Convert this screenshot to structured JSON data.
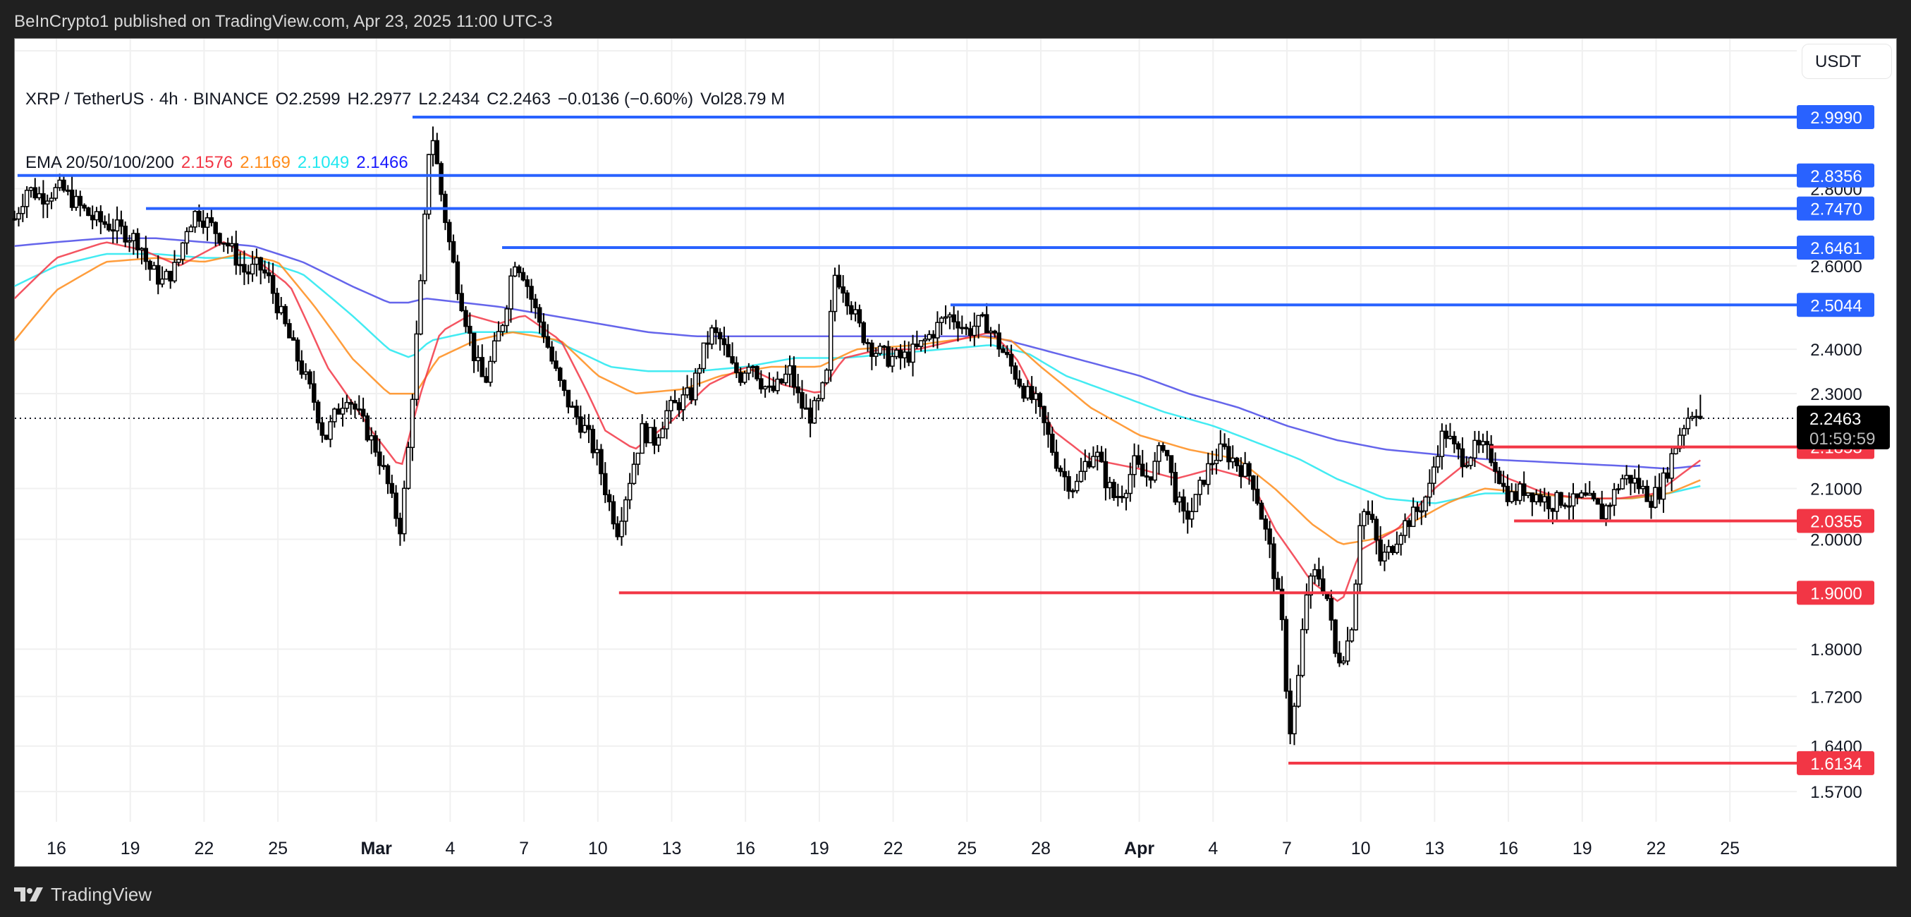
{
  "publisher_bar": {
    "text": "BeInCrypto1 published on TradingView.com, Apr 23, 2025 11:00 UTC-3"
  },
  "legend": {
    "symbol": "XRP / TetherUS · 4h · BINANCE",
    "open": "O2.2599",
    "high": "H2.2977",
    "low": "L2.2434",
    "close": "C2.2463",
    "change": "−0.0136 (−0.60%)",
    "volume": "Vol28.79 M",
    "ema_label": "EMA 20/50/100/200",
    "ema_values": [
      {
        "value": "2.1576",
        "color": "#f23645"
      },
      {
        "value": "2.1169",
        "color": "#ff8c1a"
      },
      {
        "value": "2.1049",
        "color": "#22e8f0"
      },
      {
        "value": "2.1466",
        "color": "#1a1aff"
      }
    ]
  },
  "currency_button": {
    "label": "USDT"
  },
  "footer": {
    "brand": "TradingView"
  },
  "colors": {
    "support": "#f23645",
    "resistance": "#2962ff",
    "ema20": "#f23645",
    "ema50": "#ff8c1a",
    "ema100": "#22e8f0",
    "ema200": "#4a4ae8",
    "current_price_bg": "#000000",
    "grid": "#f0f0f0"
  },
  "chart_data": {
    "type": "candlestick",
    "title": "XRP / TetherUS · 4h · BINANCE",
    "xlabel": "",
    "ylabel": "USDT",
    "y_scale": "log",
    "ylim": [
      1.55,
      3.08
    ],
    "x_tick_labels": [
      "16",
      "19",
      "22",
      "25",
      "Mar",
      "4",
      "7",
      "10",
      "13",
      "16",
      "19",
      "22",
      "25",
      "28",
      "Apr",
      "4",
      "7",
      "10",
      "13",
      "16",
      "19",
      "22",
      "25"
    ],
    "x_tick_days": [
      0,
      3,
      6,
      9,
      13,
      16,
      19,
      22,
      25,
      28,
      31,
      34,
      37,
      40,
      44,
      47,
      50,
      53,
      56,
      59,
      62,
      65,
      68
    ],
    "y_tick_labels": [
      "2.8000",
      "2.6000",
      "2.4000",
      "2.3000",
      "2.1000",
      "2.0000",
      "1.8000",
      "1.7200",
      "1.6400",
      "1.5700"
    ],
    "y_tick_values": [
      2.8,
      2.6,
      2.4,
      2.3,
      2.1,
      2.0,
      1.8,
      1.72,
      1.64,
      1.57
    ],
    "current_price": {
      "value": "2.2463",
      "countdown": "01:59:59"
    },
    "ohlc_last": {
      "open": 2.2599,
      "high": 2.2977,
      "low": 2.2434,
      "close": 2.2463
    },
    "resistance_levels": [
      {
        "label": "2.9990",
        "value": 2.999,
        "start_day": 14.47
      },
      {
        "label": "2.8356",
        "value": 2.8356,
        "start_day": -1.58
      },
      {
        "label": "2.7470",
        "value": 2.747,
        "start_day": 3.64
      },
      {
        "label": "2.6461",
        "value": 2.6461,
        "start_day": 18.11
      },
      {
        "label": "2.5044",
        "value": 2.5044,
        "start_day": 36.33
      }
    ],
    "support_levels": [
      {
        "label": "2.1853",
        "value": 2.1853,
        "start_day": 58.25
      },
      {
        "label": "2.0355",
        "value": 2.0355,
        "start_day": 59.23
      },
      {
        "label": "1.9000",
        "value": 1.9,
        "start_day": 22.86
      },
      {
        "label": "1.6134",
        "value": 1.6134,
        "start_day": 50.06
      }
    ],
    "close_path": [
      [
        -1.7,
        2.72
      ],
      [
        -1.2,
        2.8
      ],
      [
        -0.6,
        2.78
      ],
      [
        0.2,
        2.8
      ],
      [
        0.8,
        2.76
      ],
      [
        1.5,
        2.72
      ],
      [
        2.3,
        2.7
      ],
      [
        2.9,
        2.68
      ],
      [
        3.4,
        2.66
      ],
      [
        3.7,
        2.6
      ],
      [
        4.3,
        2.56
      ],
      [
        4.9,
        2.6
      ],
      [
        5.3,
        2.7
      ],
      [
        5.7,
        2.74
      ],
      [
        6.3,
        2.7
      ],
      [
        6.9,
        2.66
      ],
      [
        7.3,
        2.62
      ],
      [
        7.7,
        2.58
      ],
      [
        8.2,
        2.6
      ],
      [
        8.6,
        2.57
      ],
      [
        9.0,
        2.5
      ],
      [
        9.5,
        2.42
      ],
      [
        10.0,
        2.35
      ],
      [
        10.5,
        2.28
      ],
      [
        10.9,
        2.2
      ],
      [
        11.3,
        2.25
      ],
      [
        11.8,
        2.3
      ],
      [
        12.2,
        2.26
      ],
      [
        12.6,
        2.22
      ],
      [
        13.0,
        2.18
      ],
      [
        13.4,
        2.12
      ],
      [
        13.7,
        2.06
      ],
      [
        14.0,
        2.02
      ],
      [
        14.3,
        2.18
      ],
      [
        14.6,
        2.4
      ],
      [
        14.9,
        2.62
      ],
      [
        15.1,
        2.9
      ],
      [
        15.3,
        2.94
      ],
      [
        15.6,
        2.8
      ],
      [
        15.9,
        2.68
      ],
      [
        16.2,
        2.58
      ],
      [
        16.6,
        2.48
      ],
      [
        17.0,
        2.38
      ],
      [
        17.4,
        2.32
      ],
      [
        17.8,
        2.4
      ],
      [
        18.2,
        2.48
      ],
      [
        18.6,
        2.62
      ],
      [
        19.0,
        2.58
      ],
      [
        19.4,
        2.5
      ],
      [
        19.8,
        2.44
      ],
      [
        20.2,
        2.36
      ],
      [
        20.6,
        2.3
      ],
      [
        21.0,
        2.26
      ],
      [
        21.5,
        2.22
      ],
      [
        22.0,
        2.16
      ],
      [
        22.4,
        2.08
      ],
      [
        22.8,
        2.02
      ],
      [
        23.3,
        2.12
      ],
      [
        23.8,
        2.22
      ],
      [
        24.3,
        2.2
      ],
      [
        24.8,
        2.26
      ],
      [
        25.3,
        2.28
      ],
      [
        25.8,
        2.3
      ],
      [
        26.2,
        2.38
      ],
      [
        26.6,
        2.44
      ],
      [
        27.0,
        2.42
      ],
      [
        27.4,
        2.36
      ],
      [
        27.8,
        2.34
      ],
      [
        28.2,
        2.38
      ],
      [
        28.6,
        2.33
      ],
      [
        29.0,
        2.3
      ],
      [
        29.4,
        2.32
      ],
      [
        29.8,
        2.35
      ],
      [
        30.2,
        2.28
      ],
      [
        30.6,
        2.25
      ],
      [
        31.0,
        2.28
      ],
      [
        31.3,
        2.34
      ],
      [
        31.6,
        2.58
      ],
      [
        31.9,
        2.56
      ],
      [
        32.3,
        2.5
      ],
      [
        32.7,
        2.44
      ],
      [
        33.2,
        2.4
      ],
      [
        33.8,
        2.38
      ],
      [
        34.4,
        2.38
      ],
      [
        35.0,
        2.4
      ],
      [
        35.6,
        2.44
      ],
      [
        36.2,
        2.48
      ],
      [
        36.6,
        2.47
      ],
      [
        37.0,
        2.44
      ],
      [
        37.4,
        2.46
      ],
      [
        37.8,
        2.46
      ],
      [
        38.2,
        2.42
      ],
      [
        38.6,
        2.38
      ],
      [
        39.0,
        2.34
      ],
      [
        39.4,
        2.3
      ],
      [
        39.8,
        2.28
      ],
      [
        40.2,
        2.22
      ],
      [
        40.6,
        2.16
      ],
      [
        41.0,
        2.12
      ],
      [
        41.4,
        2.1
      ],
      [
        41.8,
        2.15
      ],
      [
        42.2,
        2.18
      ],
      [
        42.6,
        2.12
      ],
      [
        43.0,
        2.08
      ],
      [
        43.4,
        2.1
      ],
      [
        43.8,
        2.15
      ],
      [
        44.2,
        2.12
      ],
      [
        44.6,
        2.14
      ],
      [
        45.0,
        2.2
      ],
      [
        45.4,
        2.1
      ],
      [
        45.8,
        2.04
      ],
      [
        46.2,
        2.06
      ],
      [
        46.6,
        2.12
      ],
      [
        47.0,
        2.16
      ],
      [
        47.4,
        2.18
      ],
      [
        47.8,
        2.16
      ],
      [
        48.2,
        2.14
      ],
      [
        48.6,
        2.12
      ],
      [
        49.0,
        2.04
      ],
      [
        49.4,
        1.96
      ],
      [
        49.8,
        1.84
      ],
      [
        50.1,
        1.66
      ],
      [
        50.4,
        1.72
      ],
      [
        50.8,
        1.9
      ],
      [
        51.2,
        1.94
      ],
      [
        51.6,
        1.9
      ],
      [
        52.0,
        1.78
      ],
      [
        52.4,
        1.8
      ],
      [
        52.7,
        1.86
      ],
      [
        53.0,
        2.06
      ],
      [
        53.4,
        2.04
      ],
      [
        53.8,
        1.96
      ],
      [
        54.2,
        1.98
      ],
      [
        54.6,
        2.02
      ],
      [
        55.0,
        2.04
      ],
      [
        55.4,
        2.06
      ],
      [
        55.8,
        2.1
      ],
      [
        56.1,
        2.18
      ],
      [
        56.4,
        2.22
      ],
      [
        56.8,
        2.18
      ],
      [
        57.2,
        2.16
      ],
      [
        57.6,
        2.18
      ],
      [
        58.0,
        2.18
      ],
      [
        58.4,
        2.16
      ],
      [
        58.8,
        2.1
      ],
      [
        59.2,
        2.08
      ],
      [
        59.6,
        2.1
      ],
      [
        60.0,
        2.09
      ],
      [
        60.4,
        2.08
      ],
      [
        60.8,
        2.07
      ],
      [
        61.2,
        2.08
      ],
      [
        61.6,
        2.07
      ],
      [
        62.0,
        2.08
      ],
      [
        62.4,
        2.07
      ],
      [
        62.8,
        2.05
      ],
      [
        63.2,
        2.08
      ],
      [
        63.6,
        2.12
      ],
      [
        64.0,
        2.12
      ],
      [
        64.4,
        2.1
      ],
      [
        64.8,
        2.08
      ],
      [
        65.2,
        2.1
      ],
      [
        65.6,
        2.16
      ],
      [
        66.0,
        2.22
      ],
      [
        66.3,
        2.25
      ],
      [
        66.6,
        2.27
      ],
      [
        66.8,
        2.2463
      ]
    ],
    "ema_paths": {
      "ema20": [
        [
          -1.7,
          2.52
        ],
        [
          0,
          2.62
        ],
        [
          2,
          2.66
        ],
        [
          3.5,
          2.64
        ],
        [
          5,
          2.6
        ],
        [
          6.8,
          2.66
        ],
        [
          8,
          2.62
        ],
        [
          9.5,
          2.55
        ],
        [
          11,
          2.36
        ],
        [
          12.8,
          2.22
        ],
        [
          14,
          2.14
        ],
        [
          14.8,
          2.3
        ],
        [
          15.6,
          2.44
        ],
        [
          16.8,
          2.48
        ],
        [
          18,
          2.46
        ],
        [
          19,
          2.48
        ],
        [
          20.5,
          2.42
        ],
        [
          21.6,
          2.3
        ],
        [
          22.3,
          2.22
        ],
        [
          23.5,
          2.18
        ],
        [
          25,
          2.24
        ],
        [
          26.5,
          2.32
        ],
        [
          28,
          2.36
        ],
        [
          29.5,
          2.32
        ],
        [
          31,
          2.3
        ],
        [
          32,
          2.38
        ],
        [
          33.5,
          2.4
        ],
        [
          35,
          2.4
        ],
        [
          36.5,
          2.42
        ],
        [
          38,
          2.44
        ],
        [
          39,
          2.38
        ],
        [
          40.5,
          2.22
        ],
        [
          42,
          2.16
        ],
        [
          44,
          2.14
        ],
        [
          45.5,
          2.12
        ],
        [
          47,
          2.14
        ],
        [
          48.5,
          2.12
        ],
        [
          49.5,
          2.02
        ],
        [
          51,
          1.92
        ],
        [
          52.2,
          1.88
        ],
        [
          53,
          1.98
        ],
        [
          54.5,
          2.02
        ],
        [
          56,
          2.1
        ],
        [
          57.5,
          2.16
        ],
        [
          59,
          2.12
        ],
        [
          60.5,
          2.09
        ],
        [
          62,
          2.08
        ],
        [
          63.5,
          2.08
        ],
        [
          65,
          2.09
        ],
        [
          65.8,
          2.12
        ],
        [
          66.8,
          2.1576
        ]
      ],
      "ema50": [
        [
          -1.7,
          2.42
        ],
        [
          0,
          2.54
        ],
        [
          2,
          2.61
        ],
        [
          4,
          2.62
        ],
        [
          6,
          2.61
        ],
        [
          7.5,
          2.63
        ],
        [
          9,
          2.61
        ],
        [
          10.5,
          2.5
        ],
        [
          12,
          2.38
        ],
        [
          13.5,
          2.3
        ],
        [
          14.6,
          2.3
        ],
        [
          15.5,
          2.38
        ],
        [
          17,
          2.42
        ],
        [
          18.5,
          2.44
        ],
        [
          20.5,
          2.42
        ],
        [
          22,
          2.34
        ],
        [
          23.5,
          2.3
        ],
        [
          25.5,
          2.31
        ],
        [
          27,
          2.34
        ],
        [
          29,
          2.36
        ],
        [
          31,
          2.36
        ],
        [
          32.5,
          2.4
        ],
        [
          35,
          2.41
        ],
        [
          37.5,
          2.43
        ],
        [
          38.8,
          2.42
        ],
        [
          40,
          2.36
        ],
        [
          42,
          2.27
        ],
        [
          44,
          2.21
        ],
        [
          46,
          2.18
        ],
        [
          48,
          2.16
        ],
        [
          49.5,
          2.1
        ],
        [
          51,
          2.03
        ],
        [
          52.2,
          1.99
        ],
        [
          53.5,
          2.0
        ],
        [
          55,
          2.03
        ],
        [
          56.5,
          2.07
        ],
        [
          58,
          2.1
        ],
        [
          60,
          2.09
        ],
        [
          62,
          2.08
        ],
        [
          64,
          2.08
        ],
        [
          65.5,
          2.09
        ],
        [
          66.8,
          2.1169
        ]
      ],
      "ema100": [
        [
          -1.7,
          2.55
        ],
        [
          0,
          2.6
        ],
        [
          2,
          2.63
        ],
        [
          4,
          2.63
        ],
        [
          6,
          2.62
        ],
        [
          8,
          2.62
        ],
        [
          10,
          2.58
        ],
        [
          12,
          2.48
        ],
        [
          13.5,
          2.4
        ],
        [
          14.4,
          2.38
        ],
        [
          15.2,
          2.42
        ],
        [
          16.8,
          2.44
        ],
        [
          18,
          2.44
        ],
        [
          19.5,
          2.44
        ],
        [
          21,
          2.4
        ],
        [
          22.5,
          2.36
        ],
        [
          24,
          2.35
        ],
        [
          26,
          2.35
        ],
        [
          28,
          2.36
        ],
        [
          30,
          2.38
        ],
        [
          32,
          2.38
        ],
        [
          34,
          2.39
        ],
        [
          36,
          2.4
        ],
        [
          38,
          2.41
        ],
        [
          39.5,
          2.39
        ],
        [
          41,
          2.34
        ],
        [
          43,
          2.3
        ],
        [
          45,
          2.26
        ],
        [
          47,
          2.23
        ],
        [
          49,
          2.19
        ],
        [
          50.5,
          2.16
        ],
        [
          52,
          2.12
        ],
        [
          54,
          2.08
        ],
        [
          56,
          2.07
        ],
        [
          58,
          2.09
        ],
        [
          60,
          2.09
        ],
        [
          62,
          2.08
        ],
        [
          64,
          2.08
        ],
        [
          65.5,
          2.09
        ],
        [
          66.8,
          2.1049
        ]
      ],
      "ema200": [
        [
          -1.7,
          2.65
        ],
        [
          0,
          2.66
        ],
        [
          2,
          2.67
        ],
        [
          4,
          2.67
        ],
        [
          6,
          2.66
        ],
        [
          8,
          2.65
        ],
        [
          10,
          2.61
        ],
        [
          12,
          2.55
        ],
        [
          13.5,
          2.51
        ],
        [
          14.3,
          2.51
        ],
        [
          15,
          2.52
        ],
        [
          16.5,
          2.51
        ],
        [
          18,
          2.5
        ],
        [
          20,
          2.48
        ],
        [
          22,
          2.46
        ],
        [
          24,
          2.44
        ],
        [
          26,
          2.43
        ],
        [
          28,
          2.43
        ],
        [
          30,
          2.43
        ],
        [
          32,
          2.43
        ],
        [
          34,
          2.43
        ],
        [
          36,
          2.43
        ],
        [
          38,
          2.43
        ],
        [
          40,
          2.4
        ],
        [
          42,
          2.37
        ],
        [
          44,
          2.34
        ],
        [
          46,
          2.3
        ],
        [
          48,
          2.27
        ],
        [
          50,
          2.23
        ],
        [
          52,
          2.2
        ],
        [
          54,
          2.18
        ],
        [
          56,
          2.17
        ],
        [
          58,
          2.16
        ],
        [
          60,
          2.155
        ],
        [
          62,
          2.15
        ],
        [
          64,
          2.145
        ],
        [
          65.5,
          2.14
        ],
        [
          66.8,
          2.1466
        ]
      ]
    }
  }
}
